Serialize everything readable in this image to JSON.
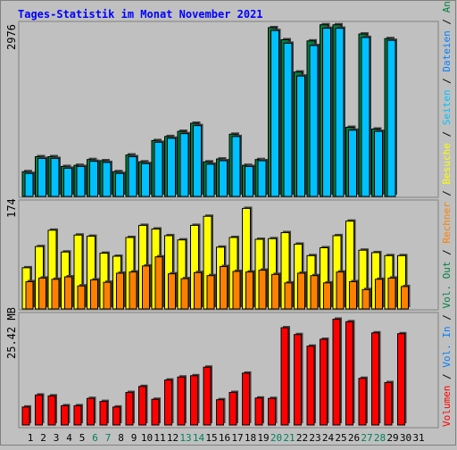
{
  "colors": {
    "background": "#c0c0c0",
    "frame_outer": "#808080",
    "title": "#0000ff",
    "visits": "#ffff00",
    "sites": "#ff8000",
    "volume": "#ff0000",
    "files": "#00c0ff",
    "pages": "#0080ff",
    "hits": "#008040",
    "sep": "#000000",
    "weekend": "#00805c",
    "weekday": "#000000"
  },
  "chart_data": {
    "type": "bar",
    "title": "Tages-Statistik im Monat November 2021",
    "days": [
      "1",
      "2",
      "3",
      "4",
      "5",
      "6",
      "7",
      "8",
      "9",
      "10",
      "11",
      "12",
      "13",
      "14",
      "15",
      "16",
      "17",
      "18",
      "19",
      "20",
      "21",
      "22",
      "23",
      "24",
      "25",
      "26",
      "27",
      "28",
      "29",
      "30",
      "31"
    ],
    "weekend_days": [
      "6",
      "7",
      "13",
      "14",
      "20",
      "21",
      "27",
      "28"
    ],
    "top_panel": {
      "max_label": "2976",
      "max": 2976,
      "legend": [
        "Anfragen",
        "Dateien",
        "Seiten"
      ],
      "series": [
        {
          "name": "Anfragen",
          "values": [
            430,
            690,
            690,
            520,
            540,
            640,
            620,
            430,
            720,
            600,
            970,
            1040,
            1130,
            1270,
            600,
            650,
            1080,
            540,
            640,
            2930,
            2720,
            2160,
            2700,
            2980,
            2980,
            1200,
            2820,
            1170,
            2740,
            0,
            0
          ]
        },
        {
          "name": "Dateien",
          "values": [
            400,
            660,
            660,
            490,
            520,
            610,
            590,
            400,
            690,
            570,
            940,
            1010,
            1090,
            1230,
            560,
            620,
            1040,
            520,
            620,
            2880,
            2660,
            2090,
            2620,
            2920,
            2920,
            1150,
            2760,
            1130,
            2710,
            0,
            0
          ]
        }
      ]
    },
    "middle_panel": {
      "max_label": "174",
      "max": 174,
      "legend": [
        "Besuche",
        "Rechner"
      ],
      "series": [
        {
          "name": "Besuche",
          "values": [
            68,
            103,
            130,
            94,
            122,
            120,
            92,
            87,
            118,
            138,
            132,
            121,
            114,
            138,
            153,
            102,
            118,
            166,
            115,
            116,
            126,
            107,
            88,
            101,
            121,
            145,
            97,
            93,
            88,
            88,
            0
          ]
        },
        {
          "name": "Rechner",
          "values": [
            45,
            51,
            49,
            53,
            38,
            48,
            44,
            59,
            61,
            71,
            86,
            58,
            50,
            60,
            55,
            70,
            62,
            61,
            64,
            57,
            43,
            59,
            55,
            43,
            61,
            45,
            32,
            49,
            51,
            37,
            0
          ]
        }
      ]
    },
    "bottom_panel": {
      "max_label": "25.42 MB",
      "max": 25.42,
      "legend": [
        "Volumen",
        "Vol. In",
        "Vol. Out"
      ],
      "series": [
        {
          "name": "Volumen",
          "values": [
            4.2,
            7.0,
            6.8,
            4.5,
            4.5,
            6.2,
            5.5,
            4.2,
            7.6,
            9.0,
            6.0,
            10.5,
            11.2,
            11.5,
            13.5,
            5.9,
            7.6,
            12.1,
            6.3,
            6.2,
            22.7,
            21.1,
            18.4,
            20.0,
            24.7,
            24.1,
            10.9,
            21.5,
            9.9,
            21.3,
            0
          ]
        }
      ]
    }
  }
}
